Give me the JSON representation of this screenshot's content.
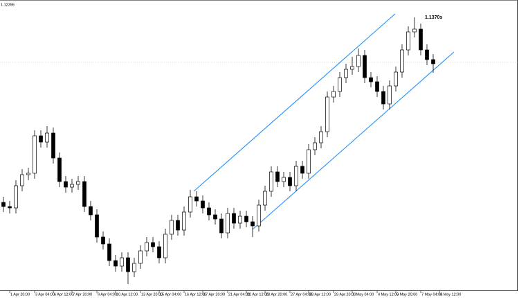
{
  "chart_data": {
    "type": "candlestick",
    "price_label": "1.12396",
    "annotation": "1.1370s",
    "categories": [
      null,
      "1 Apr 20:00",
      null,
      null,
      null,
      "3 Apr 04:00",
      null,
      null,
      "6 Apr 12:00",
      null,
      null,
      "7 Apr 20:00",
      null,
      null,
      null,
      "9 Apr 04:00",
      null,
      null,
      "10 Apr 12:00",
      null,
      null,
      null,
      "13 Apr 20:00",
      null,
      null,
      "15 Apr 04:00",
      null,
      null,
      null,
      "16 Apr 12:00",
      null,
      null,
      "17 Apr 20:00",
      null,
      null,
      null,
      "21 Apr 04:00",
      null,
      null,
      "22 Apr 12:00",
      null,
      null,
      "23 Apr 20:00",
      null,
      null,
      null,
      "27 Apr 04:00",
      null,
      null,
      "28 Apr 12:00",
      null,
      null,
      null,
      "29 Apr 20:00",
      null,
      null,
      "1 May 04:00",
      null,
      null,
      null,
      "4 May 12:00",
      null,
      null,
      "5 May 20:00",
      null,
      null,
      null,
      "7 May 04:00",
      null,
      null,
      "8 May 12:00"
    ],
    "open": [
      1.1108,
      1.1102,
      1.11,
      1.1132,
      1.1148,
      1.115,
      1.1204,
      1.1195,
      1.1208,
      1.1172,
      1.1138,
      1.113,
      1.1134,
      1.1138,
      1.1102,
      1.109,
      1.1058,
      1.1048,
      1.1024,
      1.1016,
      1.1028,
      1.1008,
      1.102,
      1.1038,
      1.105,
      1.1044,
      1.1028,
      1.1062,
      1.1082,
      1.1068,
      1.1094,
      1.1116,
      1.111,
      1.11,
      1.109,
      1.1084,
      1.1064,
      1.1092,
      1.1078,
      1.1088,
      1.108,
      1.1074,
      1.1104,
      1.1124,
      1.1152,
      1.1138,
      1.1144,
      1.1132,
      1.116,
      1.115,
      1.1184,
      1.1194,
      1.121,
      1.126,
      1.1268,
      1.1288,
      1.13,
      1.1304,
      1.132,
      1.1288,
      1.1282,
      1.1268,
      1.125,
      1.1276,
      1.1296,
      1.1328,
      1.1354,
      1.1358,
      1.1328,
      1.1314,
      null
    ],
    "high": [
      1.1116,
      1.111,
      1.114,
      1.1156,
      1.1158,
      1.1212,
      1.1212,
      1.1218,
      1.1216,
      1.118,
      1.1146,
      1.1142,
      1.1146,
      1.1146,
      1.111,
      1.1098,
      1.1066,
      1.1056,
      1.1032,
      1.1036,
      1.1036,
      1.1028,
      1.1046,
      1.1058,
      1.1058,
      1.1052,
      1.107,
      1.109,
      1.109,
      1.1102,
      1.1126,
      1.1124,
      1.1118,
      1.1108,
      1.1098,
      1.1092,
      1.11,
      1.11,
      1.1096,
      1.1096,
      1.1088,
      1.1112,
      1.1132,
      1.116,
      1.116,
      1.1152,
      1.1152,
      1.1168,
      1.1168,
      1.1192,
      1.1202,
      1.1218,
      1.1268,
      1.1276,
      1.1296,
      1.1308,
      1.1318,
      1.133,
      1.1328,
      1.1296,
      1.129,
      1.1276,
      1.1284,
      1.1304,
      1.1336,
      1.1362,
      1.1375,
      1.1366,
      1.1336,
      1.1322,
      null
    ],
    "low": [
      1.1094,
      1.1092,
      1.1092,
      1.1124,
      1.114,
      1.1142,
      1.1187,
      1.1187,
      1.1164,
      1.113,
      1.1122,
      1.1122,
      1.1126,
      1.1094,
      1.1082,
      1.105,
      1.104,
      1.1016,
      1.1008,
      1.1008,
      1.099,
      1.1,
      1.1012,
      1.103,
      1.1036,
      1.102,
      1.102,
      1.1054,
      1.106,
      1.106,
      1.1086,
      1.1102,
      1.1092,
      1.1082,
      1.1076,
      1.1056,
      1.1056,
      1.107,
      1.107,
      1.1072,
      1.1058,
      1.1066,
      1.1096,
      1.1116,
      1.113,
      1.113,
      1.1124,
      1.1124,
      1.1142,
      1.1142,
      1.1176,
      1.1186,
      1.1202,
      1.1252,
      1.126,
      1.128,
      1.1292,
      1.1296,
      1.128,
      1.1274,
      1.126,
      1.1242,
      1.1242,
      1.1268,
      1.1288,
      1.132,
      1.1346,
      1.132,
      1.1306,
      1.1295,
      null
    ],
    "close": [
      1.1102,
      1.11,
      1.1132,
      1.1148,
      1.115,
      1.1204,
      1.1195,
      1.1208,
      1.1172,
      1.1138,
      1.113,
      1.1134,
      1.1138,
      1.1102,
      1.109,
      1.1058,
      1.1048,
      1.1024,
      1.1016,
      1.1028,
      1.1008,
      1.102,
      1.1038,
      1.105,
      1.1044,
      1.1028,
      1.1062,
      1.1082,
      1.1068,
      1.1094,
      1.1116,
      1.111,
      1.11,
      1.109,
      1.1084,
      1.1064,
      1.1092,
      1.1078,
      1.1088,
      1.108,
      1.1074,
      1.1104,
      1.1124,
      1.1152,
      1.1138,
      1.1144,
      1.1132,
      1.116,
      1.115,
      1.1184,
      1.1194,
      1.121,
      1.126,
      1.1268,
      1.1288,
      1.13,
      1.1304,
      1.132,
      1.1288,
      1.1282,
      1.1268,
      1.125,
      1.1276,
      1.1296,
      1.1328,
      1.1354,
      1.1358,
      1.1328,
      1.1314,
      1.1308,
      null
    ],
    "up_color": "#ffffff",
    "down_color": "#000000",
    "outline_color": "#000000",
    "ylim": [
      1.098,
      1.14
    ]
  }
}
